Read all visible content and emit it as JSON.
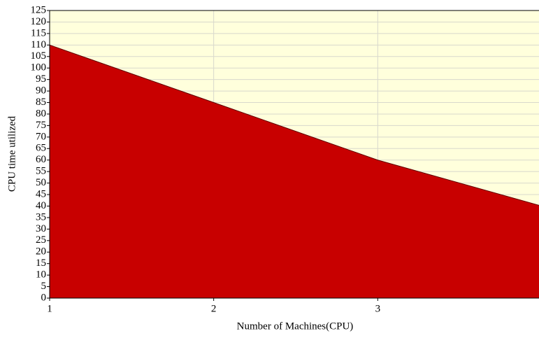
{
  "chart_data": {
    "type": "area",
    "x": [
      1,
      2,
      3,
      4
    ],
    "series": [
      {
        "color": "#c80000",
        "values": [
          110,
          85,
          60,
          40
        ]
      }
    ],
    "xlim": [
      1,
      4
    ],
    "xticks": [
      1,
      2,
      3,
      4
    ],
    "ylim": [
      0,
      125
    ],
    "yticks": [
      0,
      5,
      10,
      15,
      20,
      25,
      30,
      35,
      40,
      45,
      50,
      55,
      60,
      65,
      70,
      75,
      80,
      85,
      90,
      95,
      100,
      105,
      110,
      115,
      120,
      125
    ],
    "xlabel": "Number of Machines(CPU)",
    "ylabel": "CPU time utilized",
    "grid": true,
    "background": "#ffffdc"
  }
}
